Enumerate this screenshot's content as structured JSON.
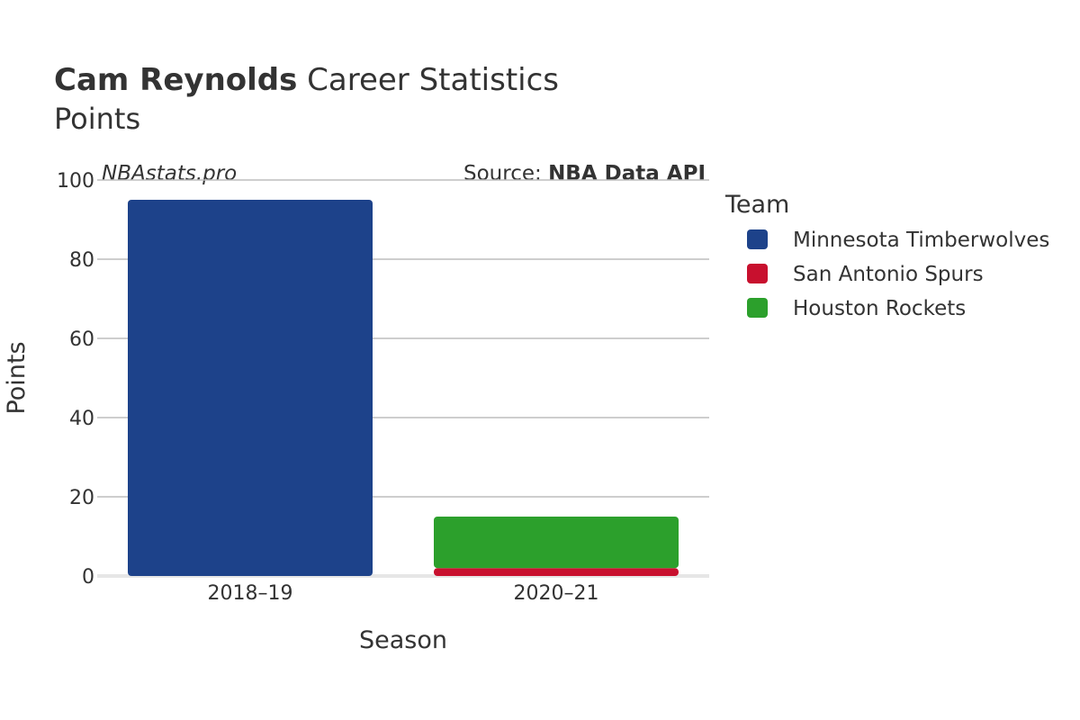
{
  "title": {
    "bold": "Cam Reynolds",
    "rest": " Career Statistics"
  },
  "subtitle": "Points",
  "credit": "NBAstats.pro",
  "source": {
    "prefix": "Source: ",
    "name": "NBA Data API"
  },
  "legend": {
    "title": "Team"
  },
  "chart_data": {
    "type": "bar",
    "stacked": true,
    "categories": [
      "2018–19",
      "2020–21"
    ],
    "series": [
      {
        "name": "Minnesota Timberwolves",
        "color": "#1d428a",
        "values": [
          95,
          0
        ]
      },
      {
        "name": "San Antonio Spurs",
        "color": "#c8102e",
        "values": [
          0,
          2
        ]
      },
      {
        "name": "Houston Rockets",
        "color": "#2ca02c",
        "values": [
          0,
          13
        ]
      }
    ],
    "xlabel": "Season",
    "ylabel": "Points",
    "ylim": [
      0,
      100
    ],
    "yticks": [
      0,
      20,
      40,
      60,
      80,
      100
    ],
    "grid": true,
    "legend_position": "right"
  }
}
